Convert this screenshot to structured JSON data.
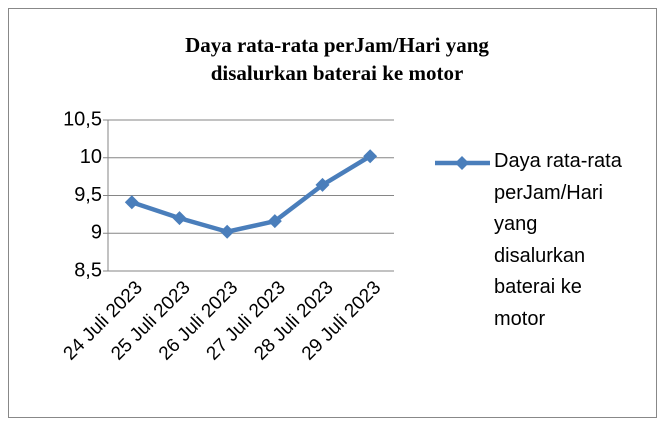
{
  "chart_data": {
    "type": "line",
    "title": "Daya rata-rata perJam/Hari yang disalurkan baterai ke motor",
    "categories": [
      "24 Juli 2023",
      "25 Juli 2023",
      "26 Juli 2023",
      "27 Juli 2023",
      "28 Juli 2023",
      "29 Juli 2023"
    ],
    "series": [
      {
        "name": "Daya rata-rata perJam/Hari yang disalurkan baterai ke motor",
        "color": "#4a7ebb",
        "values": [
          9.41,
          9.2,
          9.02,
          9.16,
          9.64,
          10.02
        ]
      }
    ],
    "ylim": [
      8.5,
      10.5
    ],
    "yticks": [
      {
        "value": 8.5,
        "label": "8,5"
      },
      9,
      {
        "value": 9.5,
        "label": "9,5"
      },
      10,
      {
        "value": 10.5,
        "label": "10,5"
      }
    ],
    "grid": true,
    "legend": "right"
  }
}
